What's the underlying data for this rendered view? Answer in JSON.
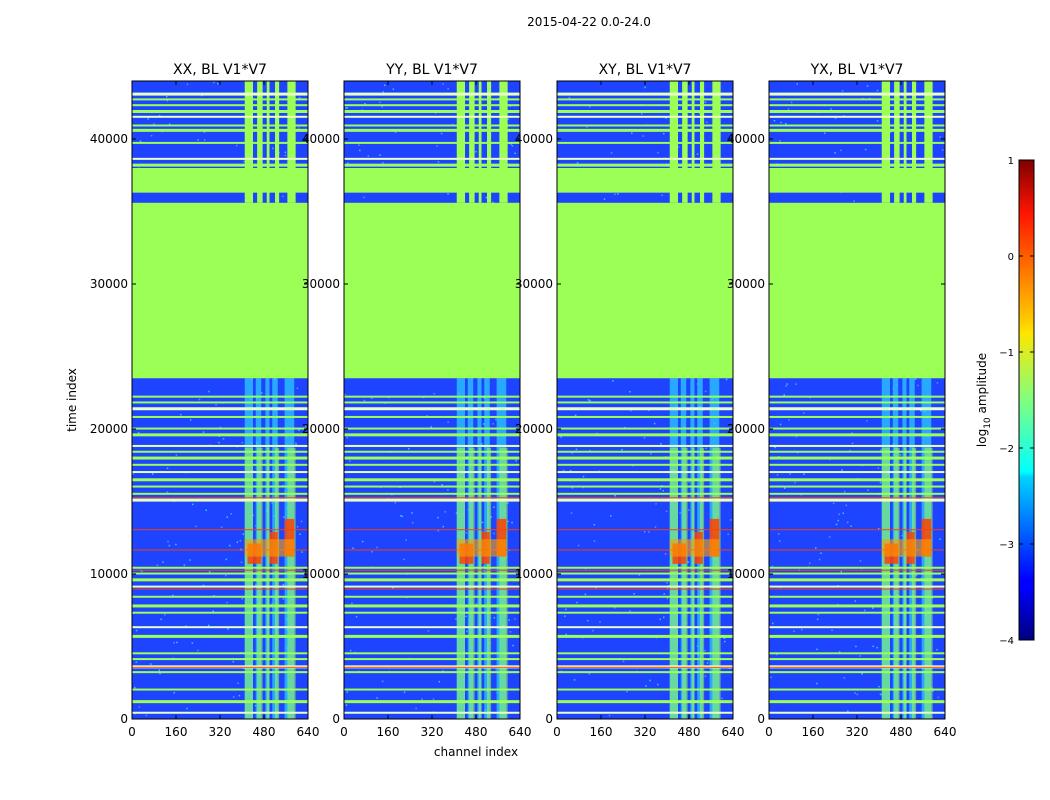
{
  "suptitle": "2015-04-22 0.0-24.0",
  "colors": {
    "background_band": "#9cff56",
    "noise_low": "#1e44ff",
    "noise_mid": "#2ec9ff",
    "rfi_high": "#ff4000"
  },
  "chart_data": {
    "type": "heatmap",
    "shared": {
      "xlabel": "channel index",
      "ylabel": "time index",
      "xlim": [
        0,
        640
      ],
      "ylim": [
        0,
        44000
      ],
      "xticks": [
        0,
        160,
        320,
        480,
        640
      ],
      "xtick_labels": [
        "0",
        "160",
        "320",
        "480",
        "640"
      ],
      "yticks": [
        0,
        10000,
        20000,
        30000,
        40000
      ],
      "ytick_labels": [
        "0",
        "10000",
        "20000",
        "30000",
        "40000"
      ]
    },
    "panels": [
      {
        "title": "XX, BL V1*V7",
        "polarization": "XX"
      },
      {
        "title": "YY, BL V1*V7",
        "polarization": "YY"
      },
      {
        "title": "XY, BL V1*V7",
        "polarization": "XY"
      },
      {
        "title": "YX, BL V1*V7",
        "polarization": "YX"
      }
    ],
    "colorbar": {
      "label": "log10 amplitude",
      "label_main": "log",
      "label_sub": "10",
      "label_rest": " amplitude",
      "range": [
        -4,
        1
      ],
      "ticks": [
        -4,
        -3,
        -2,
        -1,
        0,
        1
      ],
      "tick_labels": [
        "−4",
        "−3",
        "−2",
        "−1",
        "0",
        "1"
      ],
      "colormap": "jet"
    }
  }
}
